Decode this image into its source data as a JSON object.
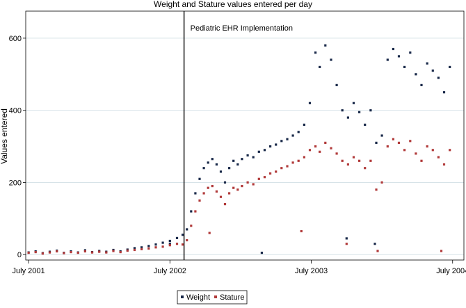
{
  "chart_data": {
    "type": "scatter",
    "title": "Weight and Stature values entered per day",
    "xlabel": "",
    "ylabel": "Values entered",
    "xlim": [
      2001.48,
      2004.58
    ],
    "ylim": [
      -15,
      675
    ],
    "x_ticks": [
      {
        "value": 2001.5,
        "label": "July 2001"
      },
      {
        "value": 2002.5,
        "label": "July 2002"
      },
      {
        "value": 2003.5,
        "label": "July 2003"
      },
      {
        "value": 2004.5,
        "label": "July 2004"
      }
    ],
    "y_ticks": [
      0,
      200,
      400,
      600
    ],
    "grid": "horizontal",
    "annotation": {
      "label": "Pediatric EHR Implementation",
      "x": 2002.6
    },
    "legend_position": "bottom-center",
    "series": [
      {
        "name": "Weight",
        "color": "#1a2a4a",
        "marker": "square",
        "points": [
          [
            2001.5,
            6
          ],
          [
            2001.55,
            9
          ],
          [
            2001.6,
            4
          ],
          [
            2001.65,
            8
          ],
          [
            2001.7,
            11
          ],
          [
            2001.75,
            5
          ],
          [
            2001.8,
            9
          ],
          [
            2001.85,
            6
          ],
          [
            2001.9,
            12
          ],
          [
            2001.95,
            7
          ],
          [
            2002.0,
            10
          ],
          [
            2002.05,
            8
          ],
          [
            2002.1,
            13
          ],
          [
            2002.15,
            9
          ],
          [
            2002.2,
            14
          ],
          [
            2002.25,
            18
          ],
          [
            2002.3,
            20
          ],
          [
            2002.35,
            24
          ],
          [
            2002.4,
            28
          ],
          [
            2002.45,
            33
          ],
          [
            2002.5,
            38
          ],
          [
            2002.55,
            46
          ],
          [
            2002.59,
            55
          ],
          [
            2002.62,
            70
          ],
          [
            2002.65,
            120
          ],
          [
            2002.68,
            170
          ],
          [
            2002.71,
            210
          ],
          [
            2002.74,
            240
          ],
          [
            2002.77,
            255
          ],
          [
            2002.8,
            265
          ],
          [
            2002.83,
            250
          ],
          [
            2002.86,
            230
          ],
          [
            2002.89,
            200
          ],
          [
            2002.92,
            240
          ],
          [
            2002.95,
            260
          ],
          [
            2002.98,
            250
          ],
          [
            2003.01,
            265
          ],
          [
            2003.05,
            275
          ],
          [
            2003.09,
            270
          ],
          [
            2003.13,
            285
          ],
          [
            2003.17,
            290
          ],
          [
            2003.21,
            300
          ],
          [
            2003.25,
            305
          ],
          [
            2003.29,
            315
          ],
          [
            2003.33,
            320
          ],
          [
            2003.37,
            330
          ],
          [
            2003.41,
            340
          ],
          [
            2003.45,
            360
          ],
          [
            2003.49,
            420
          ],
          [
            2003.53,
            560
          ],
          [
            2003.56,
            520
          ],
          [
            2003.6,
            580
          ],
          [
            2003.64,
            540
          ],
          [
            2003.68,
            470
          ],
          [
            2003.72,
            400
          ],
          [
            2003.76,
            380
          ],
          [
            2003.8,
            420
          ],
          [
            2003.84,
            395
          ],
          [
            2003.88,
            360
          ],
          [
            2003.92,
            400
          ],
          [
            2003.96,
            310
          ],
          [
            2004.0,
            330
          ],
          [
            2004.04,
            540
          ],
          [
            2004.08,
            570
          ],
          [
            2004.12,
            550
          ],
          [
            2004.16,
            520
          ],
          [
            2004.2,
            560
          ],
          [
            2004.24,
            500
          ],
          [
            2004.28,
            470
          ],
          [
            2004.32,
            530
          ],
          [
            2004.36,
            510
          ],
          [
            2004.4,
            490
          ],
          [
            2004.44,
            450
          ],
          [
            2004.48,
            520
          ],
          [
            2003.15,
            5
          ],
          [
            2002.5,
            30
          ],
          [
            2003.75,
            45
          ],
          [
            2003.95,
            30
          ]
        ]
      },
      {
        "name": "Stature",
        "color": "#b13a3a",
        "marker": "square",
        "points": [
          [
            2001.5,
            5
          ],
          [
            2001.55,
            7
          ],
          [
            2001.6,
            3
          ],
          [
            2001.65,
            6
          ],
          [
            2001.7,
            9
          ],
          [
            2001.75,
            4
          ],
          [
            2001.8,
            7
          ],
          [
            2001.85,
            5
          ],
          [
            2001.9,
            9
          ],
          [
            2001.95,
            6
          ],
          [
            2002.0,
            8
          ],
          [
            2002.05,
            6
          ],
          [
            2002.1,
            10
          ],
          [
            2002.15,
            7
          ],
          [
            2002.2,
            11
          ],
          [
            2002.25,
            13
          ],
          [
            2002.3,
            15
          ],
          [
            2002.35,
            17
          ],
          [
            2002.4,
            20
          ],
          [
            2002.45,
            22
          ],
          [
            2002.5,
            26
          ],
          [
            2002.55,
            30
          ],
          [
            2002.59,
            28
          ],
          [
            2002.62,
            40
          ],
          [
            2002.65,
            80
          ],
          [
            2002.68,
            120
          ],
          [
            2002.71,
            150
          ],
          [
            2002.74,
            170
          ],
          [
            2002.77,
            185
          ],
          [
            2002.8,
            190
          ],
          [
            2002.83,
            175
          ],
          [
            2002.86,
            160
          ],
          [
            2002.89,
            140
          ],
          [
            2002.92,
            170
          ],
          [
            2002.95,
            185
          ],
          [
            2002.98,
            180
          ],
          [
            2003.01,
            190
          ],
          [
            2003.05,
            200
          ],
          [
            2003.09,
            195
          ],
          [
            2003.13,
            210
          ],
          [
            2003.17,
            215
          ],
          [
            2003.21,
            225
          ],
          [
            2003.25,
            230
          ],
          [
            2003.29,
            240
          ],
          [
            2003.33,
            245
          ],
          [
            2003.37,
            255
          ],
          [
            2003.41,
            260
          ],
          [
            2003.45,
            270
          ],
          [
            2003.49,
            290
          ],
          [
            2003.53,
            300
          ],
          [
            2003.56,
            285
          ],
          [
            2003.6,
            310
          ],
          [
            2003.64,
            295
          ],
          [
            2003.68,
            280
          ],
          [
            2003.72,
            260
          ],
          [
            2003.76,
            250
          ],
          [
            2003.8,
            270
          ],
          [
            2003.84,
            260
          ],
          [
            2003.88,
            240
          ],
          [
            2003.92,
            260
          ],
          [
            2003.96,
            180
          ],
          [
            2004.0,
            200
          ],
          [
            2004.04,
            300
          ],
          [
            2004.08,
            320
          ],
          [
            2004.12,
            310
          ],
          [
            2004.16,
            290
          ],
          [
            2004.2,
            315
          ],
          [
            2004.24,
            280
          ],
          [
            2004.28,
            260
          ],
          [
            2004.32,
            300
          ],
          [
            2004.36,
            290
          ],
          [
            2004.4,
            270
          ],
          [
            2004.44,
            250
          ],
          [
            2004.48,
            290
          ],
          [
            2003.43,
            65
          ],
          [
            2002.78,
            60
          ],
          [
            2003.75,
            30
          ],
          [
            2003.97,
            10
          ],
          [
            2004.42,
            10
          ]
        ]
      }
    ]
  }
}
